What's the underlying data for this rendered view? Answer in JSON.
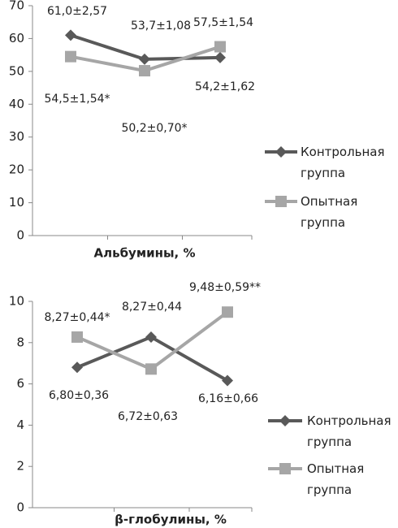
{
  "chart_data": [
    {
      "type": "line",
      "title": "Альбумины, %",
      "categories": [
        null,
        null,
        null
      ],
      "ylim": [
        0,
        70
      ],
      "yticks": [
        0,
        10,
        20,
        30,
        40,
        50,
        60,
        70
      ],
      "series": [
        {
          "name": "Контрольная группа",
          "color": "#595959",
          "marker": "diamond",
          "values": [
            61.0,
            53.7,
            54.2
          ],
          "value_labels": [
            "61,0±2,57",
            "53,7±1,08",
            "54,2±1,62"
          ]
        },
        {
          "name": "Опытная группа",
          "color": "#a6a6a6",
          "marker": "square",
          "values": [
            54.5,
            50.2,
            57.5
          ],
          "value_labels": [
            "54,5±1,54*",
            "50,2±0,70*",
            "57,5±1,54"
          ]
        }
      ]
    },
    {
      "type": "line",
      "title": "β-глобулины, %",
      "categories": [
        null,
        null,
        null
      ],
      "ylim": [
        0,
        10
      ],
      "yticks": [
        0,
        2,
        4,
        6,
        8,
        10
      ],
      "series": [
        {
          "name": "Контрольная группа",
          "color": "#595959",
          "marker": "diamond",
          "values": [
            6.8,
            8.27,
            6.16
          ],
          "value_labels": [
            "6,80±0,36",
            "8,27±0,44",
            "6,16±0,66"
          ]
        },
        {
          "name": "Опытная группа",
          "color": "#a6a6a6",
          "marker": "square",
          "values": [
            8.27,
            6.72,
            9.48
          ],
          "value_labels": [
            "8,27±0,44*",
            "6,72±0,63",
            "9,48±0,59**"
          ]
        }
      ]
    }
  ]
}
